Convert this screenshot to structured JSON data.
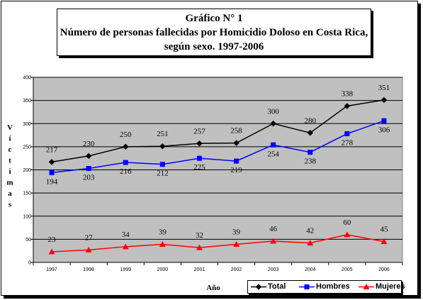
{
  "chart_data": {
    "type": "line",
    "title": "Gráfico N° 1",
    "subtitle": [
      "Número de personas fallecidas por Homicidio Doloso en Costa Rica,",
      "según sexo. 1997-2006"
    ],
    "xlabel": "Año",
    "ylabel": "Víctimas",
    "ylim": [
      0,
      400
    ],
    "yticks": [
      "0",
      "50",
      "100",
      "150",
      "200",
      "250",
      "300",
      "350",
      "400"
    ],
    "categories": [
      "1997",
      "1998",
      "1999",
      "2000",
      "2001",
      "2002",
      "2003",
      "2004",
      "2005",
      "2006"
    ],
    "grid": true,
    "legend_position": "bottom-right",
    "series": [
      {
        "name": "Total",
        "color": "#000000",
        "marker": "diamond",
        "values": [
          217,
          230,
          250,
          251,
          257,
          258,
          300,
          280,
          338,
          351
        ]
      },
      {
        "name": "Hombres",
        "color": "#0000ff",
        "marker": "square",
        "values": [
          194,
          203,
          216,
          212,
          225,
          219,
          254,
          238,
          278,
          306
        ]
      },
      {
        "name": "Mujeres",
        "color": "#ff0000",
        "marker": "triangle",
        "values": [
          23,
          27,
          34,
          39,
          32,
          39,
          46,
          42,
          60,
          45
        ]
      }
    ],
    "plot_background": "#c0c0c0"
  }
}
